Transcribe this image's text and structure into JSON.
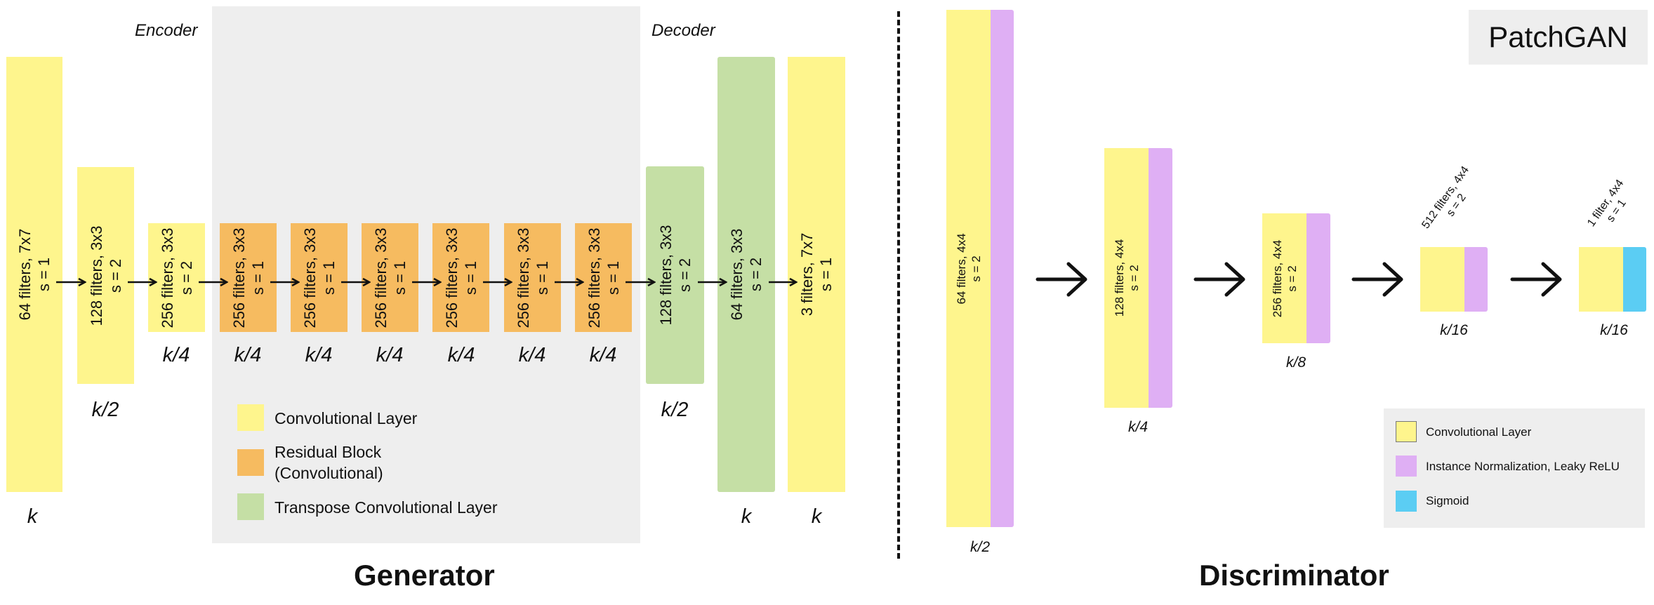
{
  "generator": {
    "title": "Generator",
    "encoder_label": "Encoder",
    "decoder_label": "Decoder",
    "layers": [
      {
        "line1": "64 filters, 7x7",
        "line2": "s = 1",
        "size": "k",
        "kind": "conv"
      },
      {
        "line1": "128 filters, 3x3",
        "line2": "s = 2",
        "size": "k/2",
        "kind": "conv"
      },
      {
        "line1": "256 filters, 3x3",
        "line2": "s = 2",
        "size": "k/4",
        "kind": "conv"
      },
      {
        "line1": "256 filters, 3x3",
        "line2": "s = 1",
        "size": "k/4",
        "kind": "residual"
      },
      {
        "line1": "256 filters, 3x3",
        "line2": "s = 1",
        "size": "k/4",
        "kind": "residual"
      },
      {
        "line1": "256 filters, 3x3",
        "line2": "s = 1",
        "size": "k/4",
        "kind": "residual"
      },
      {
        "line1": "256 filters, 3x3",
        "line2": "s = 1",
        "size": "k/4",
        "kind": "residual"
      },
      {
        "line1": "256 filters, 3x3",
        "line2": "s = 1",
        "size": "k/4",
        "kind": "residual"
      },
      {
        "line1": "256 filters, 3x3",
        "line2": "s = 1",
        "size": "k/4",
        "kind": "residual"
      },
      {
        "line1": "128 filters, 3x3",
        "line2": "s = 2",
        "size": "k/2",
        "kind": "transpose"
      },
      {
        "line1": "64 filters, 3x3",
        "line2": "s = 2",
        "size": "k",
        "kind": "transpose"
      },
      {
        "line1": "3 filters, 7x7",
        "line2": "s = 1",
        "size": "k",
        "kind": "conv"
      }
    ],
    "legend": {
      "conv": "Convolutional Layer",
      "residual_line1": "Residual Block",
      "residual_line2": "(Convolutional)",
      "transpose": "Transpose Convolutional Layer"
    }
  },
  "discriminator": {
    "title": "Discriminator",
    "badge": "PatchGAN",
    "layers": [
      {
        "line1": "64 filters, 4x4",
        "line2": "s = 2",
        "size": "k/2"
      },
      {
        "line1": "128 filters, 4x4",
        "line2": "s = 2",
        "size": "k/4"
      },
      {
        "line1": "256 filters, 4x4",
        "line2": "s = 2",
        "size": "k/8"
      },
      {
        "line1": "512 filters, 4x4",
        "line2": "s = 2",
        "size": "k/16"
      },
      {
        "line1": "1 filter, 4x4",
        "line2": "s = 1",
        "size": "k/16"
      }
    ],
    "legend": {
      "conv": "Convolutional Layer",
      "norm": "Instance Normalization, Leaky ReLU",
      "sigmoid": "Sigmoid"
    }
  },
  "colors": {
    "conv": "#fef58d",
    "residual": "#f6bb60",
    "transpose": "#c5dfa5",
    "norm": "#dfaff4",
    "sigmoid": "#5bcdf3",
    "panel": "#eeeeee"
  }
}
